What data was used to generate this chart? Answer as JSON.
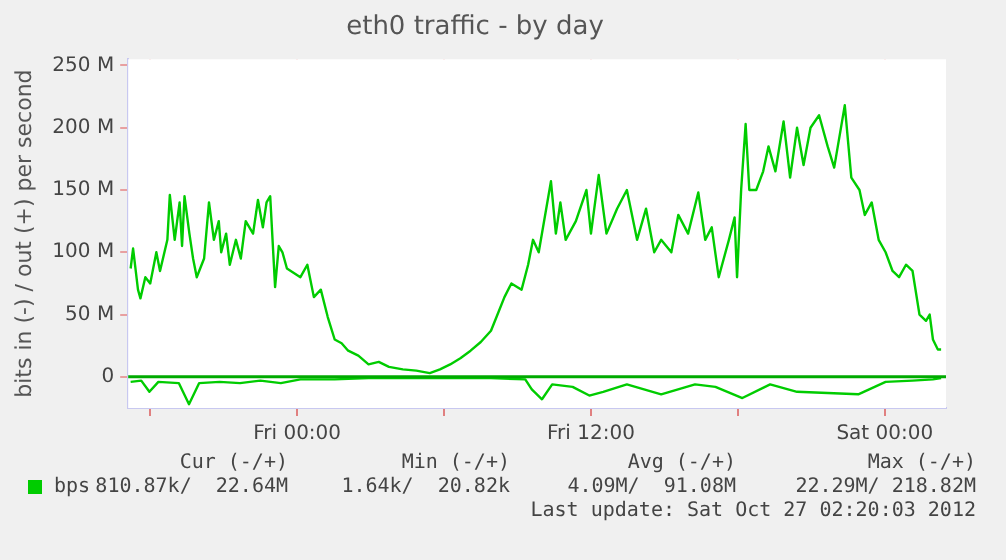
{
  "chart_data": {
    "type": "line",
    "title": "eth0 traffic - by day",
    "ylabel": "bits in (-) / out (+) per second",
    "xlim": [
      "2012-10-25T17:06",
      "2012-10-27T02:30"
    ],
    "xticks": [
      {
        "value": "2012-10-25T18:00",
        "label": null
      },
      {
        "value": "2012-10-26T00:00",
        "label": "Fri 00:00"
      },
      {
        "value": "2012-10-26T06:00",
        "label": null
      },
      {
        "value": "2012-10-26T12:00",
        "label": "Fri 12:00"
      },
      {
        "value": "2012-10-26T18:00",
        "label": null
      },
      {
        "value": "2012-10-27T00:00",
        "label": "Sat 00:00"
      }
    ],
    "ylim": [
      -25,
      255
    ],
    "yticks": [
      {
        "value": 0,
        "label": "0"
      },
      {
        "value": 50,
        "label": "50 M"
      },
      {
        "value": 100,
        "label": "100 M"
      },
      {
        "value": 150,
        "label": "150 M"
      },
      {
        "value": 200,
        "label": "200 M"
      },
      {
        "value": 250,
        "label": "250 M"
      }
    ],
    "grid": true,
    "legend": "bottom left",
    "marker": "none",
    "line_style": "solid",
    "ref_lines": [
      {
        "axis": "y",
        "value": 0,
        "color": "#00aa00"
      }
    ],
    "series": [
      {
        "name": "bps",
        "color": "#00cc00",
        "x": [
          "2012-10-25T17:12",
          "2012-10-25T17:18",
          "2012-10-25T17:30",
          "2012-10-25T17:36",
          "2012-10-25T17:48",
          "2012-10-25T18:00",
          "2012-10-25T18:15",
          "2012-10-25T18:24",
          "2012-10-25T18:42",
          "2012-10-25T18:48",
          "2012-10-25T19:00",
          "2012-10-25T19:12",
          "2012-10-25T19:18",
          "2012-10-25T19:24",
          "2012-10-25T19:36",
          "2012-10-25T19:45",
          "2012-10-25T19:54",
          "2012-10-25T20:12",
          "2012-10-25T20:24",
          "2012-10-25T20:36",
          "2012-10-25T20:48",
          "2012-10-25T20:54",
          "2012-10-25T21:06",
          "2012-10-25T21:15",
          "2012-10-25T21:30",
          "2012-10-25T21:42",
          "2012-10-25T21:54",
          "2012-10-25T22:12",
          "2012-10-25T22:24",
          "2012-10-25T22:36",
          "2012-10-25T22:45",
          "2012-10-25T22:54",
          "2012-10-25T23:06",
          "2012-10-25T23:15",
          "2012-10-25T23:24",
          "2012-10-25T23:35",
          "2012-10-26T00:08",
          "2012-10-26T00:25",
          "2012-10-26T00:41",
          "2012-10-26T00:58",
          "2012-10-26T01:15",
          "2012-10-26T01:32",
          "2012-10-26T01:49",
          "2012-10-26T02:05",
          "2012-10-26T02:30",
          "2012-10-26T02:55",
          "2012-10-26T03:20",
          "2012-10-26T03:45",
          "2012-10-26T04:19",
          "2012-10-26T04:52",
          "2012-10-26T05:25",
          "2012-10-26T05:50",
          "2012-10-26T06:15",
          "2012-10-26T06:40",
          "2012-10-26T07:05",
          "2012-10-26T07:30",
          "2012-10-26T07:55",
          "2012-10-26T08:11",
          "2012-10-26T08:28",
          "2012-10-26T08:45",
          "2012-10-26T09:10",
          "2012-10-26T09:26",
          "2012-10-26T09:38",
          "2012-10-26T09:52",
          "2012-10-26T10:22",
          "2012-10-26T10:34",
          "2012-10-26T10:45",
          "2012-10-26T10:58",
          "2012-10-26T11:23",
          "2012-10-26T11:49",
          "2012-10-26T12:00",
          "2012-10-26T12:19",
          "2012-10-26T12:38",
          "2012-10-26T13:04",
          "2012-10-26T13:28",
          "2012-10-26T13:53",
          "2012-10-26T14:15",
          "2012-10-26T14:35",
          "2012-10-26T14:52",
          "2012-10-26T15:17",
          "2012-10-26T15:34",
          "2012-10-26T15:58",
          "2012-10-26T16:23",
          "2012-10-26T16:40",
          "2012-10-26T16:56",
          "2012-10-26T17:13",
          "2012-10-26T17:38",
          "2012-10-26T17:52",
          "2012-10-26T17:58",
          "2012-10-26T18:08",
          "2012-10-26T18:19",
          "2012-10-26T18:28",
          "2012-10-26T18:45",
          "2012-10-26T19:02",
          "2012-10-26T19:15",
          "2012-10-26T19:32",
          "2012-10-26T19:52",
          "2012-10-26T20:08",
          "2012-10-26T20:25",
          "2012-10-26T20:41",
          "2012-10-26T20:58",
          "2012-10-26T21:19",
          "2012-10-26T21:40",
          "2012-10-26T21:56",
          "2012-10-26T22:22",
          "2012-10-26T22:38",
          "2012-10-26T22:58",
          "2012-10-26T23:11",
          "2012-10-26T23:28",
          "2012-10-26T23:45",
          "2012-10-27T00:02",
          "2012-10-27T00:19",
          "2012-10-27T00:35",
          "2012-10-27T00:52",
          "2012-10-27T01:08",
          "2012-10-27T01:25",
          "2012-10-27T01:41",
          "2012-10-27T01:50",
          "2012-10-27T01:58",
          "2012-10-27T02:10",
          "2012-10-27T02:18"
        ],
        "values": [
          87,
          103,
          70,
          63,
          80,
          75,
          100,
          85,
          110,
          146,
          110,
          140,
          105,
          145,
          115,
          95,
          80,
          95,
          140,
          110,
          125,
          100,
          115,
          90,
          110,
          95,
          125,
          115,
          142,
          120,
          140,
          145,
          72,
          105,
          100,
          87,
          80,
          90,
          64,
          70,
          48,
          30,
          27,
          21,
          17,
          10,
          12,
          8,
          6,
          5,
          3,
          6,
          10,
          15,
          21,
          28,
          37,
          50,
          64,
          75,
          70,
          90,
          110,
          100,
          157,
          115,
          140,
          110,
          125,
          150,
          115,
          162,
          115,
          135,
          150,
          110,
          135,
          100,
          110,
          100,
          130,
          115,
          148,
          110,
          120,
          80,
          110,
          128,
          80,
          150,
          203,
          150,
          150,
          165,
          185,
          165,
          205,
          160,
          200,
          170,
          200,
          210,
          185,
          168,
          218,
          160,
          150,
          130,
          140,
          110,
          100,
          85,
          80,
          90,
          85,
          50,
          45,
          50,
          30,
          22,
          22
        ]
      },
      {
        "color": "#00cc00",
        "x": [
          "2012-10-25T17:12",
          "2012-10-25T17:38",
          "2012-10-25T17:58",
          "2012-10-25T18:20",
          "2012-10-25T19:10",
          "2012-10-25T19:35",
          "2012-10-25T20:00",
          "2012-10-25T20:50",
          "2012-10-25T21:40",
          "2012-10-25T22:30",
          "2012-10-25T23:20",
          "2012-10-26T00:08",
          "2012-10-26T01:32",
          "2012-10-26T02:55",
          "2012-10-26T05:08",
          "2012-10-26T07:55",
          "2012-10-26T09:19",
          "2012-10-26T09:35",
          "2012-10-26T10:00",
          "2012-10-26T10:25",
          "2012-10-26T11:15",
          "2012-10-26T11:56",
          "2012-10-26T12:30",
          "2012-10-26T13:28",
          "2012-10-26T14:52",
          "2012-10-26T16:15",
          "2012-10-26T17:05",
          "2012-10-26T18:11",
          "2012-10-26T19:19",
          "2012-10-26T20:25",
          "2012-10-26T21:40",
          "2012-10-26T22:55",
          "2012-10-27T00:02",
          "2012-10-27T01:08",
          "2012-10-27T01:58",
          "2012-10-27T02:18"
        ],
        "values": [
          -4,
          -3,
          -12,
          -4,
          -5,
          -22,
          -5,
          -4,
          -5,
          -3,
          -5,
          -2,
          -2,
          -1,
          -1,
          -1,
          -2,
          -10,
          -18,
          -6,
          -8,
          -15,
          -12,
          -6,
          -14,
          -6,
          -8,
          -17,
          -6,
          -12,
          -13,
          -14,
          -4,
          -3,
          -2,
          -1
        ]
      }
    ],
    "annotations": [
      "Cur (-/+)",
      "Min (-/+)",
      "Avg (-/+)",
      "Max (-/+)",
      "810.87k/  22.64M",
      "1.64k/  20.82k",
      "4.09M/  91.08M",
      "22.29M/ 218.82M",
      "Last update: Sat Oct 27 02:20:03 2012"
    ]
  }
}
